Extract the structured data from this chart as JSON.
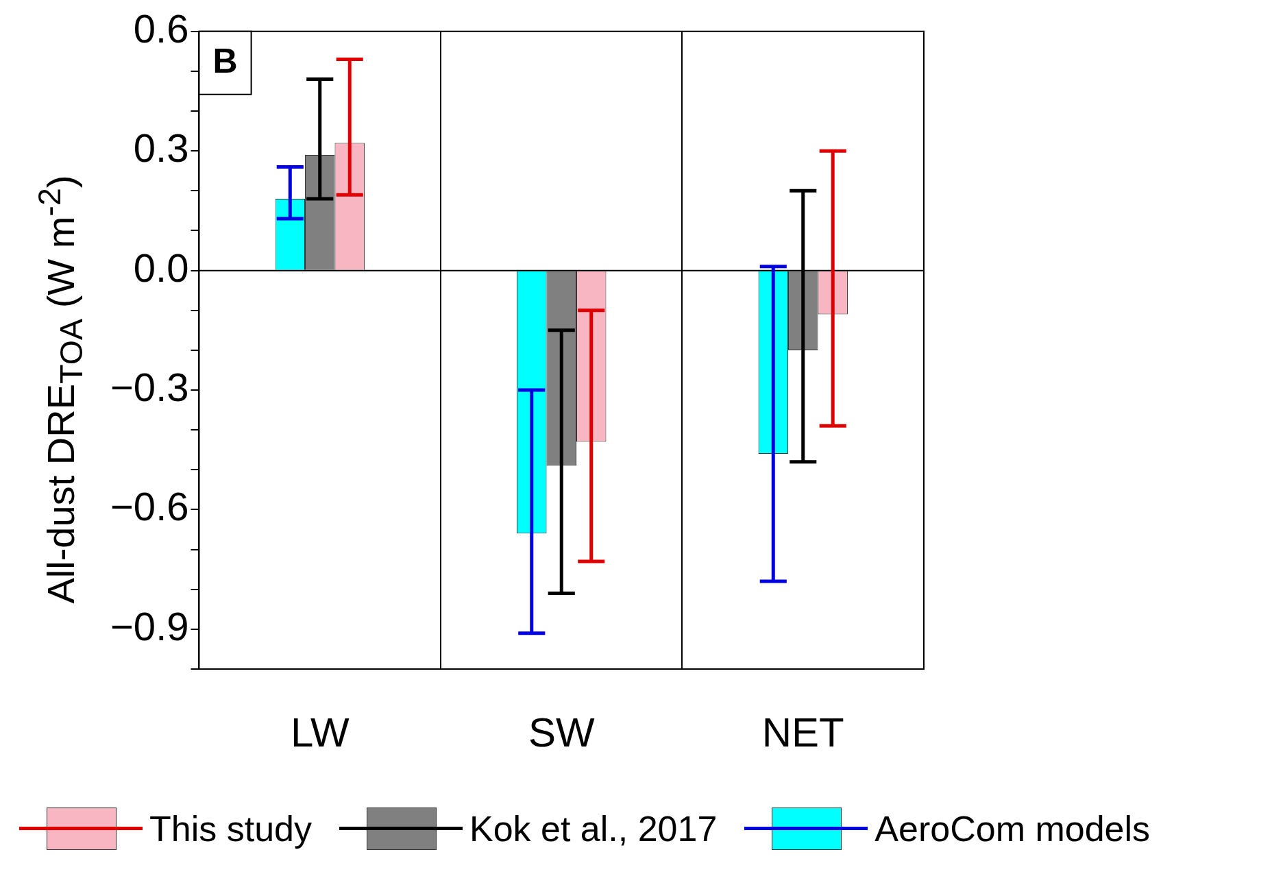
{
  "chart_data": {
    "type": "bar",
    "ylabel": "All-dust DRE$_{TOA}$ (W m$^{-2}$)",
    "categories": [
      "LW",
      "SW",
      "NET"
    ],
    "series": [
      {
        "name": "AeroCom models",
        "color": "#00ffff",
        "values": [
          0.18,
          -0.66,
          -0.46
        ],
        "errors": [
          [
            0.13,
            0.26
          ],
          [
            -0.91,
            -0.3
          ],
          [
            -0.78,
            0.01
          ]
        ]
      },
      {
        "name": "Kok et al., 2017",
        "color": "#808080",
        "values": [
          0.29,
          -0.49,
          -0.2
        ],
        "errors": [
          [
            0.18,
            0.48
          ],
          [
            -0.81,
            -0.15
          ],
          [
            -0.48,
            0.2
          ]
        ]
      },
      {
        "name": "This study",
        "color": "#f7b6c2",
        "values": [
          0.32,
          -0.43,
          -0.11
        ],
        "errors": [
          [
            0.19,
            0.53
          ],
          [
            -0.73,
            -0.1
          ],
          [
            -0.39,
            0.3
          ]
        ]
      }
    ],
    "ylim": [
      -1.0,
      0.6
    ],
    "yticks": [
      {
        "value": -1.0,
        "label": null
      },
      {
        "value": -0.9,
        "label": "−0.9"
      },
      {
        "value": -0.8,
        "label": null
      },
      {
        "value": -0.7,
        "label": null
      },
      {
        "value": -0.6,
        "label": "−0.6"
      },
      {
        "value": -0.5,
        "label": null
      },
      {
        "value": -0.4,
        "label": null
      },
      {
        "value": -0.3,
        "label": "−0.3"
      },
      {
        "value": -0.2,
        "label": null
      },
      {
        "value": -0.1,
        "label": null
      },
      {
        "value": 0,
        "label": "0.0"
      },
      {
        "value": 0.1,
        "label": null
      },
      {
        "value": 0.2,
        "label": null
      },
      {
        "value": 0.3,
        "label": "0.3"
      },
      {
        "value": 0.4,
        "label": null
      },
      {
        "value": 0.5,
        "label": null
      },
      {
        "value": 0.6,
        "label": "0.6"
      }
    ],
    "ref_lines": [
      {
        "axis": "y",
        "value": 0,
        "color": "#000000"
      }
    ],
    "annotations": [
      "B"
    ],
    "grid": "x",
    "legend": "bottom"
  }
}
